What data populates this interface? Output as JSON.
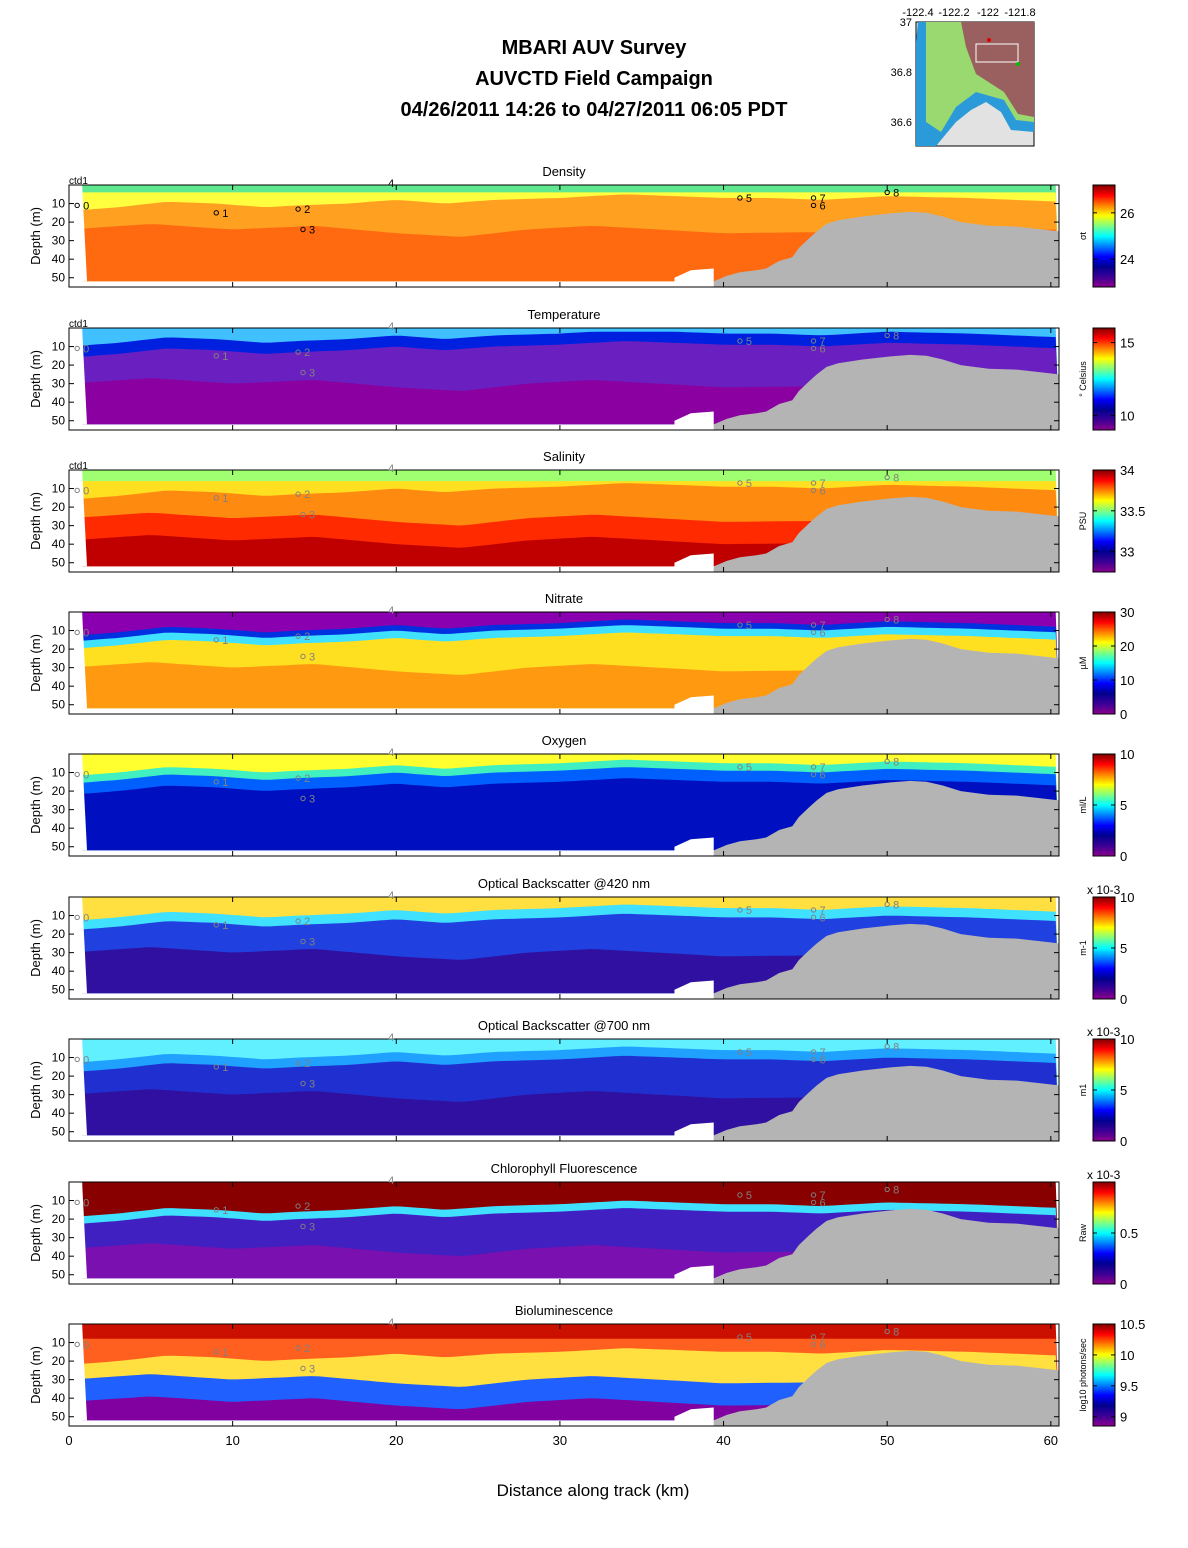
{
  "header": {
    "title_line1": "MBARI AUV Survey",
    "title_line2": "AUVCTD Field Campaign",
    "title_line3": "04/26/2011 14:26  to 04/27/2011 06:05 PDT"
  },
  "map": {
    "lon_ticks": [
      "-122.4",
      "-122.2",
      "-122",
      "-121.8"
    ],
    "lat_ticks": [
      "37",
      "36.8",
      "36.6"
    ]
  },
  "x_axis": {
    "label": "Distance along track (km)",
    "ticks": [
      0,
      10,
      20,
      30,
      40,
      50,
      60
    ],
    "range": [
      0,
      60.5
    ]
  },
  "depth_axis": {
    "label": "Depth (m)",
    "ticks": [
      10,
      20,
      30,
      40,
      50
    ],
    "range": [
      0,
      55
    ]
  },
  "stations": [
    {
      "label": "0",
      "km": 0.5,
      "depth": 11
    },
    {
      "label": "1",
      "km": 9.0,
      "depth": 15
    },
    {
      "label": "2",
      "km": 14.0,
      "depth": 13
    },
    {
      "label": "3",
      "km": 14.3,
      "depth": 24
    },
    {
      "label": "4",
      "km": 19.5,
      "depth": -1
    },
    {
      "label": "5",
      "km": 41.0,
      "depth": 7
    },
    {
      "label": "7",
      "km": 45.5,
      "depth": 7
    },
    {
      "label": "6",
      "km": 45.5,
      "depth": 11
    },
    {
      "label": "8",
      "km": 50.0,
      "depth": 4
    }
  ],
  "chart_data": [
    {
      "type": "heatmap",
      "title": "Density",
      "corner_label": "ctd1",
      "colorbar_label": "σt",
      "cbar_ticks": [
        "26",
        "24"
      ],
      "cbar_tick_values": [
        26,
        24
      ],
      "cbar_range": [
        22.8,
        27.2
      ]
    },
    {
      "type": "heatmap",
      "title": "Temperature",
      "corner_label": "ctd1",
      "colorbar_label": "° Celsius",
      "cbar_ticks": [
        "15",
        "10"
      ],
      "cbar_tick_values": [
        15,
        10
      ],
      "cbar_range": [
        9,
        16
      ]
    },
    {
      "type": "heatmap",
      "title": "Salinity",
      "corner_label": "ctd1",
      "colorbar_label": "PSU",
      "cbar_ticks": [
        "34",
        "33.5",
        "33"
      ],
      "cbar_tick_values": [
        34,
        33.5,
        33
      ],
      "cbar_range": [
        32.75,
        34
      ]
    },
    {
      "type": "heatmap",
      "title": "Nitrate",
      "corner_label": "",
      "colorbar_label": "µM",
      "cbar_ticks": [
        "30",
        "20",
        "10",
        "0"
      ],
      "cbar_tick_values": [
        30,
        20,
        10,
        0
      ],
      "cbar_range": [
        0,
        30
      ]
    },
    {
      "type": "heatmap",
      "title": "Oxygen",
      "corner_label": "",
      "colorbar_label": "ml/L",
      "cbar_ticks": [
        "10",
        "5",
        "0"
      ],
      "cbar_tick_values": [
        10,
        5,
        0
      ],
      "cbar_range": [
        0,
        10
      ]
    },
    {
      "type": "heatmap",
      "title": "Optical Backscatter @420 nm",
      "corner_label": "",
      "colorbar_label": "m-1",
      "cbar_exponent": "x 10-3",
      "cbar_ticks": [
        "10",
        "5",
        "0"
      ],
      "cbar_tick_values": [
        10,
        5,
        0
      ],
      "cbar_range": [
        0,
        10
      ]
    },
    {
      "type": "heatmap",
      "title": "Optical Backscatter @700 nm",
      "corner_label": "",
      "colorbar_label": "m1",
      "cbar_exponent": "x 10-3",
      "cbar_ticks": [
        "10",
        "5",
        "0"
      ],
      "cbar_tick_values": [
        10,
        5,
        0
      ],
      "cbar_range": [
        0,
        10
      ]
    },
    {
      "type": "heatmap",
      "title": "Chlorophyll Fluorescence",
      "corner_label": "",
      "colorbar_label": "Raw",
      "cbar_exponent": "x 10-3",
      "cbar_ticks": [
        "0.5",
        "0"
      ],
      "cbar_tick_values": [
        0.5,
        0
      ],
      "cbar_range": [
        0,
        1
      ]
    },
    {
      "type": "heatmap",
      "title": "Bioluminescence",
      "corner_label": "",
      "colorbar_label": "log10 photons/sec",
      "cbar_ticks": [
        "10.5",
        "10",
        "9.5",
        "9"
      ],
      "cbar_tick_values": [
        10.5,
        10,
        9.5,
        9
      ],
      "cbar_range": [
        8.85,
        10.5
      ]
    }
  ],
  "colors": {
    "jet": [
      "#8b008b",
      "#3b0096",
      "#00008f",
      "#0000ff",
      "#0080ff",
      "#00ffff",
      "#80ff80",
      "#ffff00",
      "#ff8000",
      "#ff0000",
      "#800000"
    ],
    "seafloor": "#b4b4b4"
  }
}
